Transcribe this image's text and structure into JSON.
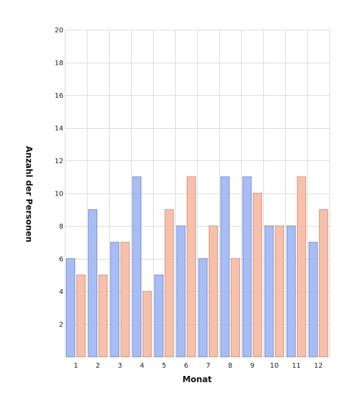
{
  "chart_data": {
    "type": "bar",
    "categories": [
      "1",
      "2",
      "3",
      "4",
      "5",
      "6",
      "7",
      "8",
      "9",
      "10",
      "11",
      "12"
    ],
    "series": [
      {
        "values": [
          6,
          9,
          7,
          11,
          5,
          8,
          6,
          11,
          11,
          8,
          8,
          7
        ],
        "color": "#a8bdf5",
        "stroke": "#6f84c8"
      },
      {
        "values": [
          5,
          5,
          7,
          4,
          9,
          11,
          8,
          6,
          10,
          8,
          11,
          9
        ],
        "color": "#f7c0ab",
        "stroke": "#cc8a73"
      }
    ],
    "xlabel": "Monat",
    "ylabel": "Anzahl der Personen",
    "ylim": [
      0,
      20
    ],
    "yticks": [
      2,
      4,
      6,
      8,
      10,
      12,
      14,
      16,
      18,
      20
    ],
    "grid": true,
    "legend": "none"
  }
}
